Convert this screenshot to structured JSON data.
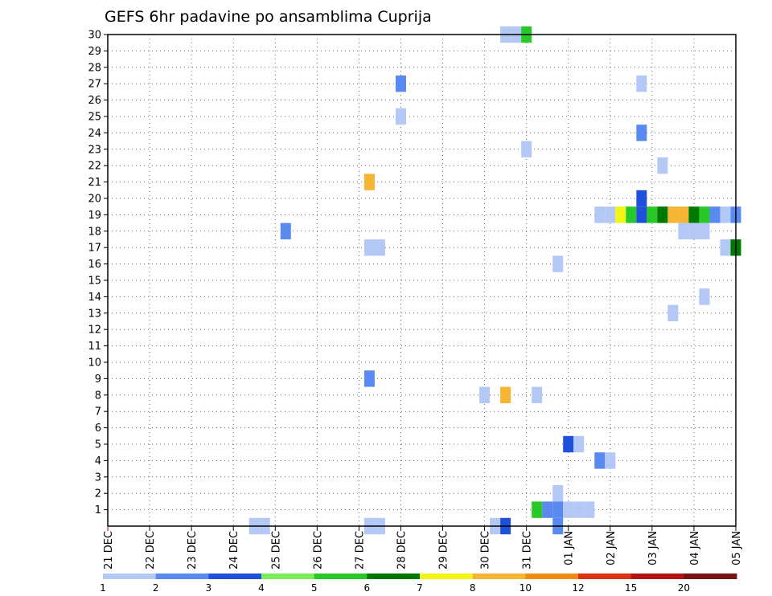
{
  "chart_data": {
    "type": "heatmap",
    "title": "GEFS 6hr padavine po ansamblima Cuprija",
    "xlabel": "",
    "ylabel": "",
    "x_ticks": [
      "21 DEC",
      "22 DEC",
      "23 DEC",
      "24 DEC",
      "25 DEC",
      "26 DEC",
      "27 DEC",
      "28 DEC",
      "29 DEC",
      "30 DEC",
      "31 DEC",
      "01 JAN",
      "02 JAN",
      "03 JAN",
      "04 JAN",
      "05 JAN"
    ],
    "xlim": [
      0,
      15
    ],
    "x_unit": "days from 21 DEC",
    "y_ticks": [
      1,
      2,
      3,
      4,
      5,
      6,
      7,
      8,
      9,
      10,
      11,
      12,
      13,
      14,
      15,
      16,
      17,
      18,
      19,
      20,
      21,
      22,
      23,
      24,
      25,
      26,
      27,
      28,
      29,
      30
    ],
    "ylim": [
      0,
      30
    ],
    "grid": true,
    "legend": {
      "position": "bottom",
      "labels": [
        "1",
        "2",
        "3",
        "4",
        "5",
        "6",
        "7",
        "8",
        "10",
        "12",
        "15",
        "20"
      ],
      "colors": [
        "#b4c8f5",
        "#5a8af0",
        "#1e50dc",
        "#7cec5a",
        "#28c828",
        "#007800",
        "#f5f514",
        "#f5b432",
        "#f08c14",
        "#dc3214",
        "#b41414",
        "#781414"
      ]
    },
    "cells": [
      {
        "x": 9.5,
        "y": 30,
        "v": 1
      },
      {
        "x": 9.75,
        "y": 30,
        "v": 1
      },
      {
        "x": 10.0,
        "y": 30,
        "v": 5
      },
      {
        "x": 7.0,
        "y": 27,
        "v": 2
      },
      {
        "x": 7.0,
        "y": 25,
        "v": 1
      },
      {
        "x": 12.75,
        "y": 27,
        "v": 1
      },
      {
        "x": 12.75,
        "y": 24,
        "v": 2
      },
      {
        "x": 10.0,
        "y": 23,
        "v": 1
      },
      {
        "x": 13.25,
        "y": 22,
        "v": 1
      },
      {
        "x": 6.25,
        "y": 21,
        "v": 8
      },
      {
        "x": 12.75,
        "y": 20,
        "v": 3
      },
      {
        "x": 11.75,
        "y": 19,
        "v": 1
      },
      {
        "x": 12.0,
        "y": 19,
        "v": 1
      },
      {
        "x": 12.25,
        "y": 19,
        "v": 7
      },
      {
        "x": 12.5,
        "y": 19,
        "v": 5
      },
      {
        "x": 12.75,
        "y": 19,
        "v": 3
      },
      {
        "x": 13.0,
        "y": 19,
        "v": 5
      },
      {
        "x": 13.25,
        "y": 19,
        "v": 6
      },
      {
        "x": 13.5,
        "y": 19,
        "v": 8
      },
      {
        "x": 13.75,
        "y": 19,
        "v": 8
      },
      {
        "x": 14.0,
        "y": 19,
        "v": 6
      },
      {
        "x": 14.25,
        "y": 19,
        "v": 5
      },
      {
        "x": 14.5,
        "y": 19,
        "v": 2
      },
      {
        "x": 14.75,
        "y": 19,
        "v": 1
      },
      {
        "x": 15.0,
        "y": 19,
        "v": 2
      },
      {
        "x": 4.25,
        "y": 18,
        "v": 2
      },
      {
        "x": 13.75,
        "y": 18,
        "v": 1
      },
      {
        "x": 14.0,
        "y": 18,
        "v": 1
      },
      {
        "x": 14.25,
        "y": 18,
        "v": 1
      },
      {
        "x": 6.25,
        "y": 17,
        "v": 1
      },
      {
        "x": 6.5,
        "y": 17,
        "v": 1
      },
      {
        "x": 14.75,
        "y": 17,
        "v": 1
      },
      {
        "x": 15.0,
        "y": 17,
        "v": 6
      },
      {
        "x": 10.75,
        "y": 16,
        "v": 1
      },
      {
        "x": 14.25,
        "y": 14,
        "v": 1
      },
      {
        "x": 13.5,
        "y": 13,
        "v": 1
      },
      {
        "x": 6.25,
        "y": 9,
        "v": 2
      },
      {
        "x": 9.0,
        "y": 8,
        "v": 1
      },
      {
        "x": 9.5,
        "y": 8,
        "v": 8
      },
      {
        "x": 10.25,
        "y": 8,
        "v": 1
      },
      {
        "x": 11.0,
        "y": 5,
        "v": 3
      },
      {
        "x": 11.25,
        "y": 5,
        "v": 1
      },
      {
        "x": 11.75,
        "y": 4,
        "v": 2
      },
      {
        "x": 12.0,
        "y": 4,
        "v": 1
      },
      {
        "x": 10.75,
        "y": 2,
        "v": 1
      },
      {
        "x": 10.25,
        "y": 1,
        "v": 5
      },
      {
        "x": 10.5,
        "y": 1,
        "v": 2
      },
      {
        "x": 10.75,
        "y": 1,
        "v": 2
      },
      {
        "x": 11.0,
        "y": 1,
        "v": 1
      },
      {
        "x": 11.25,
        "y": 1,
        "v": 1
      },
      {
        "x": 11.5,
        "y": 1,
        "v": 1
      },
      {
        "x": 10.75,
        "y": 0,
        "v": 2
      },
      {
        "x": 3.5,
        "y": 0,
        "v": 1
      },
      {
        "x": 3.75,
        "y": 0,
        "v": 1
      },
      {
        "x": 6.25,
        "y": 0,
        "v": 1
      },
      {
        "x": 6.5,
        "y": 0,
        "v": 1
      },
      {
        "x": 9.25,
        "y": 0,
        "v": 1
      },
      {
        "x": 9.5,
        "y": 0,
        "v": 3
      }
    ]
  }
}
